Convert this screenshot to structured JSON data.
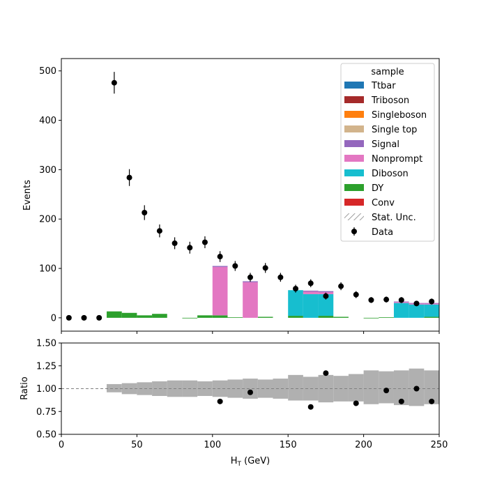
{
  "chart_data": [
    {
      "type": "bar",
      "panel": "main",
      "ylabel": "Events",
      "xlabel": "",
      "xlim": [
        0,
        250
      ],
      "ylim": [
        -27,
        525
      ],
      "yticks": [
        0,
        100,
        200,
        300,
        400,
        500
      ],
      "grid": false,
      "bin_edges": [
        0,
        10,
        20,
        30,
        40,
        50,
        60,
        70,
        80,
        90,
        100,
        110,
        120,
        130,
        140,
        150,
        160,
        170,
        180,
        190,
        200,
        210,
        220,
        230,
        240,
        250
      ],
      "stack_order": [
        "Conv",
        "DY",
        "Diboson",
        "Nonprompt",
        "Signal",
        "Single top",
        "Singleboson",
        "Triboson",
        "Ttbar"
      ],
      "series": [
        {
          "name": "Conv",
          "color": "#d62728",
          "values": [
            0,
            0,
            0,
            0,
            0,
            0,
            0,
            0,
            0,
            0,
            0,
            0,
            0,
            0,
            0,
            0,
            0,
            0,
            0,
            0,
            0,
            0,
            0,
            0,
            0
          ]
        },
        {
          "name": "DY",
          "color": "#2ca02c",
          "values": [
            0,
            0,
            0,
            13,
            10,
            5,
            8,
            0,
            -1,
            5,
            5,
            1,
            0,
            2,
            0,
            4,
            0,
            4,
            2,
            0,
            -1,
            1,
            0,
            0,
            2
          ]
        },
        {
          "name": "Diboson",
          "color": "#17becf",
          "values": [
            0,
            0,
            0,
            0,
            0,
            0,
            0,
            0,
            0,
            0,
            0,
            0,
            0,
            0,
            0,
            52,
            48,
            44,
            0,
            0,
            0,
            0,
            30,
            27,
            25
          ]
        },
        {
          "name": "Nonprompt",
          "color": "#e377c2",
          "values": [
            0,
            0,
            0,
            0,
            0,
            0,
            0,
            0,
            0,
            0,
            98,
            0,
            72,
            0,
            0,
            0,
            5,
            4,
            0,
            0,
            0,
            0,
            2,
            2,
            2
          ]
        },
        {
          "name": "Signal",
          "color": "#9467bd",
          "values": [
            0,
            0,
            0,
            0,
            0,
            0,
            0,
            0,
            0,
            0,
            2,
            0,
            2,
            0,
            0,
            0,
            2,
            2,
            0,
            0,
            0,
            0,
            1,
            1,
            1
          ]
        },
        {
          "name": "Single top",
          "color": "#d2b48c",
          "values": [
            0,
            0,
            0,
            0,
            0,
            0,
            0,
            0,
            0,
            0,
            0,
            0,
            0,
            0,
            0,
            0,
            0,
            0,
            0,
            0,
            0,
            0,
            0,
            0,
            0
          ]
        },
        {
          "name": "Singleboson",
          "color": "#ff7f0e",
          "values": [
            0,
            0,
            0,
            0,
            0,
            0,
            0,
            0,
            0,
            0,
            0,
            0,
            0,
            0,
            0,
            0,
            0,
            0,
            0,
            0,
            0,
            0,
            0,
            0,
            0
          ]
        },
        {
          "name": "Triboson",
          "color": "#a52a2a",
          "values": [
            0,
            0,
            0,
            0,
            0,
            0,
            0,
            0,
            0,
            0,
            0,
            0,
            0,
            0,
            0,
            0,
            0,
            0,
            0,
            0,
            0,
            0,
            0,
            0,
            0
          ]
        },
        {
          "name": "Ttbar",
          "color": "#1f77b4",
          "values": [
            0,
            0,
            0,
            0,
            0,
            0,
            0,
            0,
            0,
            0,
            0,
            0,
            0,
            0,
            0,
            0,
            0,
            0,
            0,
            0,
            0,
            0,
            0,
            0,
            0
          ]
        }
      ],
      "data": {
        "name": "Data",
        "x": [
          5,
          15,
          25,
          35,
          45,
          55,
          65,
          75,
          85,
          95,
          105,
          115,
          125,
          135,
          145,
          155,
          165,
          175,
          185,
          195,
          205,
          215,
          225,
          235,
          245
        ],
        "y": [
          0,
          0,
          0,
          476,
          284,
          213,
          176,
          151,
          142,
          153,
          124,
          105,
          82,
          101,
          82,
          59,
          70,
          44,
          64,
          47,
          36,
          37,
          36,
          29,
          33
        ],
        "err": [
          0,
          0,
          0,
          22,
          17,
          15,
          13,
          12,
          12,
          12,
          11,
          10,
          9,
          10,
          9,
          8,
          8,
          7,
          8,
          7,
          6,
          6,
          6,
          5,
          6
        ]
      },
      "legend": {
        "title": "sample",
        "placement": "top-right",
        "entries": [
          {
            "label": "Ttbar",
            "color": "#1f77b4",
            "kind": "patch"
          },
          {
            "label": "Triboson",
            "color": "#a52a2a",
            "kind": "patch"
          },
          {
            "label": "Singleboson",
            "color": "#ff7f0e",
            "kind": "patch"
          },
          {
            "label": "Single top",
            "color": "#d2b48c",
            "kind": "patch"
          },
          {
            "label": "Signal",
            "color": "#9467bd",
            "kind": "patch"
          },
          {
            "label": "Nonprompt",
            "color": "#e377c2",
            "kind": "patch"
          },
          {
            "label": "Diboson",
            "color": "#17becf",
            "kind": "patch"
          },
          {
            "label": "DY",
            "color": "#2ca02c",
            "kind": "patch"
          },
          {
            "label": "Conv",
            "color": "#d62728",
            "kind": "patch"
          },
          {
            "label": "Stat. Unc.",
            "color": "#808080",
            "kind": "hatch"
          },
          {
            "label": "Data",
            "color": "#000000",
            "kind": "errorbar"
          }
        ]
      }
    },
    {
      "type": "scatter",
      "panel": "ratio",
      "ylabel": "Ratio",
      "xlabel": "H$_T$ (GeV)",
      "xlabel_main": "H",
      "xlabel_sub": "T",
      "xlabel_unit": " (GeV)",
      "xlim": [
        0,
        250
      ],
      "ylim": [
        0.5,
        1.5
      ],
      "xticks": [
        0,
        50,
        100,
        150,
        200,
        250
      ],
      "yticks": [
        "0.50",
        "0.75",
        "1.00",
        "1.25",
        "1.50"
      ],
      "reference_line": 1.0,
      "unc_band": {
        "color": "#b0b0b0",
        "x_start": [
          30,
          40,
          50,
          60,
          70,
          80,
          90,
          100,
          110,
          120,
          130,
          140,
          150,
          160,
          170,
          180,
          190,
          200,
          210,
          220,
          230,
          240
        ],
        "lo": [
          0.96,
          0.94,
          0.93,
          0.92,
          0.91,
          0.91,
          0.92,
          0.91,
          0.9,
          0.89,
          0.9,
          0.89,
          0.87,
          0.87,
          0.85,
          0.86,
          0.86,
          0.83,
          0.84,
          0.82,
          0.81,
          0.83
        ],
        "hi": [
          1.05,
          1.06,
          1.07,
          1.08,
          1.09,
          1.09,
          1.08,
          1.09,
          1.1,
          1.11,
          1.1,
          1.11,
          1.15,
          1.13,
          1.15,
          1.14,
          1.16,
          1.2,
          1.19,
          1.2,
          1.22,
          1.2
        ]
      },
      "points": {
        "x": [
          105,
          125,
          165,
          175,
          195,
          215,
          225,
          235,
          245
        ],
        "y": [
          0.86,
          0.96,
          0.8,
          1.17,
          0.84,
          0.98,
          0.86,
          1.0,
          0.86
        ]
      }
    }
  ]
}
